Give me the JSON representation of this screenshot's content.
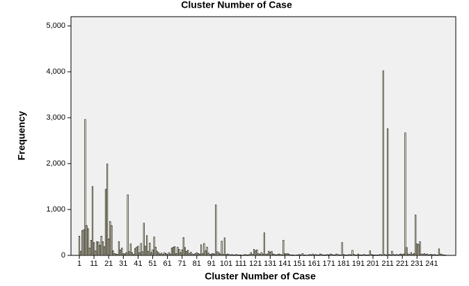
{
  "chart_data": {
    "type": "bar",
    "title": "Cluster Number of Case",
    "x_label": "Cluster Number of Case",
    "y_label": "Frequency",
    "categories": [
      "1",
      null,
      null,
      null,
      null,
      null,
      null,
      null,
      null,
      null,
      "11",
      null,
      null,
      null,
      null,
      null,
      null,
      null,
      null,
      null,
      "21",
      null,
      null,
      null,
      null,
      null,
      null,
      null,
      null,
      null,
      "31",
      null,
      null,
      null,
      null,
      null,
      null,
      null,
      null,
      null,
      "41",
      null,
      null,
      null,
      null,
      null,
      null,
      null,
      null,
      null,
      "51",
      null,
      null,
      null,
      null,
      null,
      null,
      null,
      null,
      null,
      "61",
      null,
      null,
      null,
      null,
      null,
      null,
      null,
      null,
      null,
      "71",
      null,
      null,
      null,
      null,
      null,
      null,
      null,
      null,
      null,
      "81",
      null,
      null,
      null,
      null,
      null,
      null,
      null,
      null,
      null,
      "91",
      null,
      null,
      null,
      null,
      null,
      null,
      null,
      null,
      null,
      "101",
      null,
      null,
      null,
      null,
      null,
      null,
      null,
      null,
      null,
      "111",
      null,
      null,
      null,
      null,
      null,
      null,
      null,
      null,
      null,
      "121",
      null,
      null,
      null,
      null,
      null,
      null,
      null,
      null,
      null,
      "131",
      null,
      null,
      null,
      null,
      null,
      null,
      null,
      null,
      null,
      "141",
      null,
      null,
      null,
      null,
      null,
      null,
      null,
      null,
      null,
      "151",
      null,
      null,
      null,
      null,
      null,
      null,
      null,
      null,
      null,
      "161",
      null,
      null,
      null,
      null,
      null,
      null,
      null,
      null,
      null,
      "171",
      null,
      null,
      null,
      null,
      null,
      null,
      null,
      null,
      null,
      "181",
      null,
      null,
      null,
      null,
      null,
      null,
      null,
      null,
      null,
      "191",
      null,
      null,
      null,
      null,
      null,
      null,
      null,
      null,
      null,
      "201",
      null,
      null,
      null,
      null,
      null,
      null,
      null,
      null,
      null,
      "211",
      null,
      null,
      null,
      null,
      null,
      null,
      null,
      null,
      null,
      "221",
      null,
      null,
      null,
      null,
      null,
      null,
      null,
      null,
      null,
      "231",
      null,
      null,
      null,
      null,
      null,
      null,
      null,
      null,
      null,
      "241",
      null,
      null,
      null,
      null,
      null,
      null,
      null,
      null,
      null
    ],
    "values": [
      420,
      90,
      540,
      560,
      2960,
      650,
      580,
      160,
      330,
      1500,
      280,
      100,
      300,
      290,
      220,
      420,
      300,
      190,
      1440,
      1990,
      360,
      740,
      650,
      100,
      40,
      30,
      20,
      300,
      120,
      160,
      40,
      30,
      60,
      1320,
      80,
      250,
      60,
      20,
      150,
      180,
      200,
      60,
      260,
      80,
      700,
      200,
      430,
      90,
      270,
      60,
      120,
      400,
      180,
      90,
      60,
      30,
      50,
      20,
      60,
      40,
      20,
      60,
      30,
      160,
      180,
      190,
      40,
      180,
      130,
      60,
      120,
      390,
      170,
      90,
      110,
      40,
      70,
      30,
      20,
      40,
      60,
      40,
      30,
      230,
      40,
      260,
      100,
      180,
      50,
      20,
      30,
      40,
      30,
      1100,
      80,
      60,
      30,
      310,
      20,
      380,
      20,
      30,
      20,
      10,
      20,
      10,
      10,
      20,
      10,
      10,
      10,
      5,
      10,
      20,
      10,
      10,
      20,
      60,
      20,
      130,
      100,
      120,
      40,
      20,
      60,
      30,
      490,
      20,
      30,
      90,
      70,
      90,
      30,
      20,
      10,
      20,
      30,
      20,
      10,
      330,
      40,
      30,
      40,
      20,
      10,
      10,
      10,
      5,
      10,
      10,
      20,
      10,
      40,
      10,
      10,
      5,
      10,
      20,
      10,
      30,
      10,
      20,
      10,
      10,
      30,
      20,
      10,
      10,
      10,
      20,
      10,
      30,
      20,
      10,
      10,
      30,
      20,
      10,
      10,
      280,
      20,
      10,
      10,
      10,
      20,
      10,
      110,
      20,
      10,
      10,
      30,
      10,
      10,
      10,
      20,
      10,
      10,
      10,
      100,
      20,
      10,
      10,
      10,
      10,
      10,
      20,
      10,
      4020,
      20,
      10,
      2760,
      20,
      10,
      90,
      20,
      10,
      20,
      10,
      20,
      30,
      20,
      30,
      2670,
      170,
      30,
      20,
      60,
      20,
      40,
      880,
      250,
      240,
      300,
      30,
      20,
      40,
      20,
      30,
      10,
      20,
      20,
      10,
      20,
      10,
      10,
      140,
      30,
      20,
      10,
      10
    ],
    "color": "#f3efcf",
    "ylim": [
      0,
      5200
    ],
    "yticks": [
      0,
      {
        "value": 1000,
        "label": "1,000"
      },
      {
        "value": 2000,
        "label": "2,000"
      },
      {
        "value": 3000,
        "label": "3,000"
      },
      {
        "value": 4000,
        "label": "4,000"
      },
      {
        "value": 5000,
        "label": "5,000"
      }
    ],
    "grid": false
  }
}
